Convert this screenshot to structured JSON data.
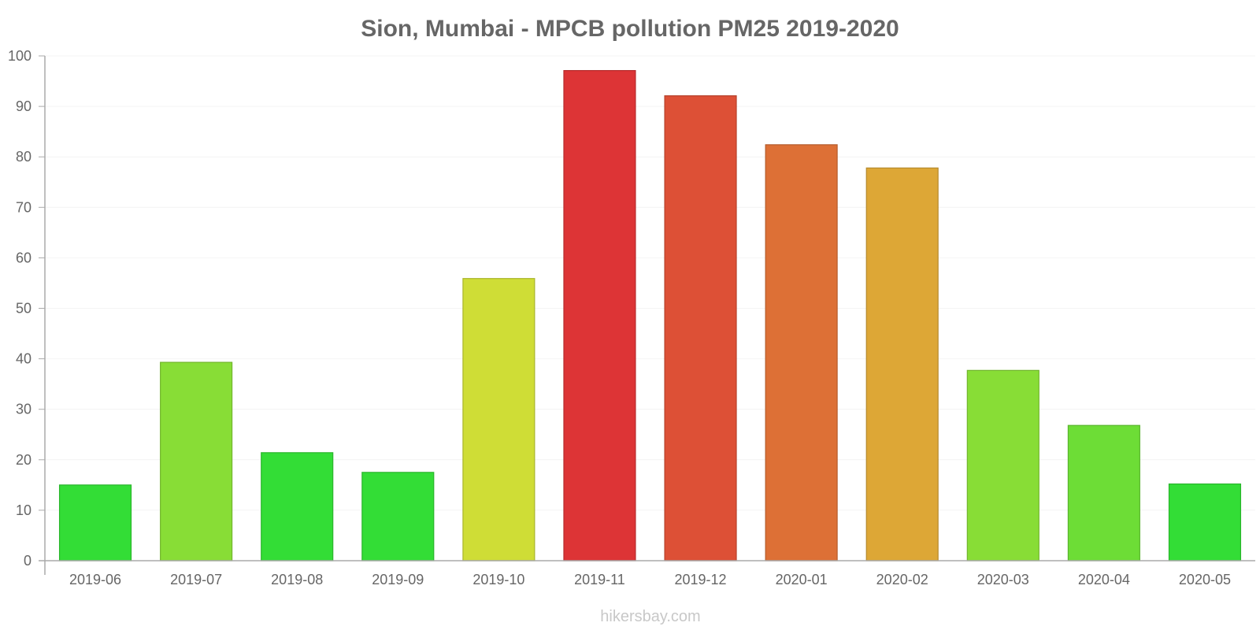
{
  "chart_data": {
    "type": "bar",
    "title": "Sion, Mumbai - MPCB pollution PM25 2019-2020",
    "xlabel": "",
    "ylabel": "",
    "ylim": [
      0,
      100
    ],
    "yticks": [
      0,
      10,
      20,
      30,
      40,
      50,
      60,
      70,
      80,
      90,
      100
    ],
    "categories": [
      "2019-06",
      "2019-07",
      "2019-08",
      "2019-09",
      "2019-10",
      "2019-11",
      "2019-12",
      "2020-01",
      "2020-02",
      "2020-03",
      "2020-04",
      "2020-05"
    ],
    "values": [
      15,
      39.3,
      21.4,
      17.5,
      55.9,
      97.1,
      92.1,
      82.4,
      77.8,
      37.7,
      26.8,
      15.2
    ],
    "colors": [
      "#33dd36",
      "#88dd36",
      "#33dd36",
      "#33dd36",
      "#cfdd36",
      "#dd3436",
      "#dd5036",
      "#dd7036",
      "#dda736",
      "#88dd36",
      "#6ddd36",
      "#33dd36"
    ],
    "grid": true,
    "legend": "none"
  },
  "watermark": "hikersbay.com"
}
